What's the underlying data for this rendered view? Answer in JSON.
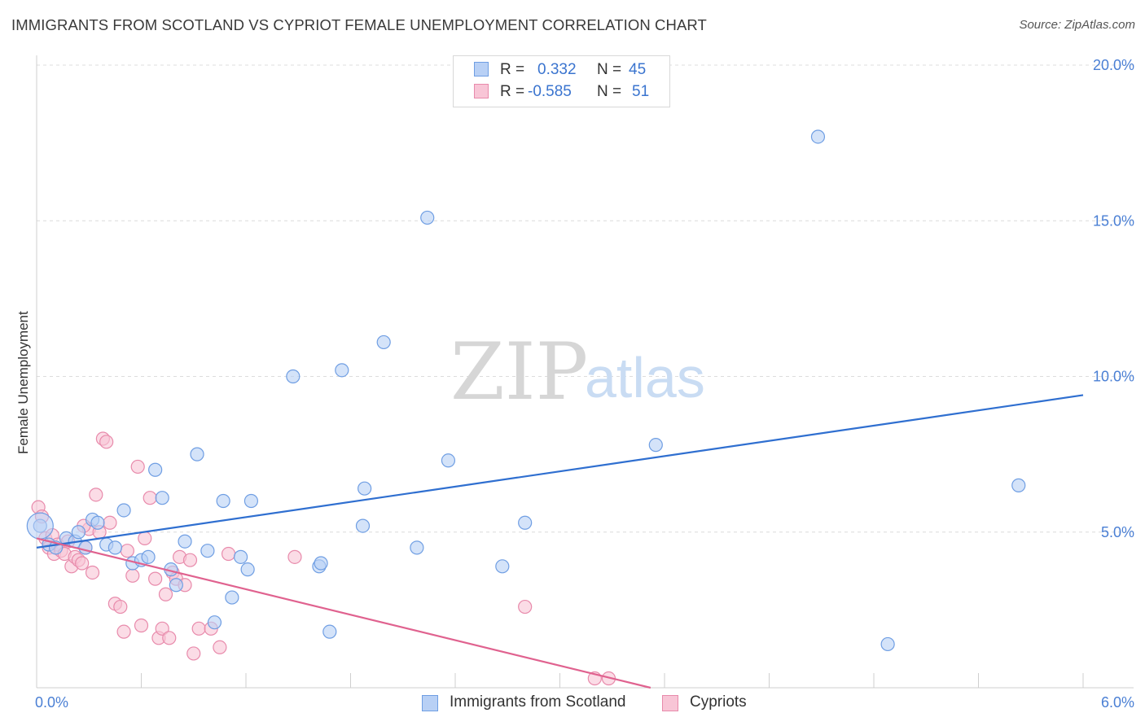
{
  "header": {
    "title": "IMMIGRANTS FROM SCOTLAND VS CYPRIOT FEMALE UNEMPLOYMENT CORRELATION CHART",
    "source": "Source: ZipAtlas.com"
  },
  "watermark": {
    "zip": "ZIP",
    "atlas": "atlas"
  },
  "legend": {
    "r_label": "R =",
    "n_label": "N =",
    "series": [
      {
        "r": "0.332",
        "n": "45"
      },
      {
        "r": "-0.585",
        "n": "51"
      }
    ]
  },
  "colors": {
    "blue_fill": "#b8d0f5",
    "blue_stroke": "#6f9ee3",
    "blue_line": "#2f6fd0",
    "pink_fill": "#f8c5d6",
    "pink_stroke": "#e88aab",
    "pink_line": "#e0628f",
    "tick_text": "#4a7fd4",
    "grid": "#dcdcdc"
  },
  "chart_data": {
    "type": "scatter",
    "title": "IMMIGRANTS FROM SCOTLAND VS CYPRIOT FEMALE UNEMPLOYMENT CORRELATION CHART",
    "xlabel": "",
    "ylabel": "Female Unemployment",
    "xlim": [
      0,
      6
    ],
    "ylim": [
      0,
      20
    ],
    "x_tick_labels": [
      "0.0%",
      "6.0%"
    ],
    "y_ticks": [
      5,
      10,
      15,
      20
    ],
    "y_tick_labels": [
      "5.0%",
      "10.0%",
      "15.0%",
      "20.0%"
    ],
    "grid": true,
    "series": [
      {
        "name": "Immigrants from Scotland",
        "color": "blue",
        "points": [
          [
            0.02,
            5.2
          ],
          [
            0.07,
            4.6
          ],
          [
            0.11,
            4.5
          ],
          [
            0.17,
            4.8
          ],
          [
            0.22,
            4.7
          ],
          [
            0.24,
            5.0
          ],
          [
            0.28,
            4.5
          ],
          [
            0.32,
            5.4
          ],
          [
            0.35,
            5.3
          ],
          [
            0.4,
            4.6
          ],
          [
            0.45,
            4.5
          ],
          [
            0.5,
            5.7
          ],
          [
            0.55,
            4.0
          ],
          [
            0.6,
            4.1
          ],
          [
            0.64,
            4.2
          ],
          [
            0.68,
            7.0
          ],
          [
            0.72,
            6.1
          ],
          [
            0.77,
            3.8
          ],
          [
            0.8,
            3.3
          ],
          [
            0.85,
            4.7
          ],
          [
            0.92,
            7.5
          ],
          [
            0.98,
            4.4
          ],
          [
            1.02,
            2.1
          ],
          [
            1.07,
            6.0
          ],
          [
            1.12,
            2.9
          ],
          [
            1.17,
            4.2
          ],
          [
            1.21,
            3.8
          ],
          [
            1.23,
            6.0
          ],
          [
            1.47,
            10.0
          ],
          [
            1.62,
            3.9
          ],
          [
            1.68,
            1.8
          ],
          [
            1.75,
            10.2
          ],
          [
            1.87,
            5.2
          ],
          [
            1.88,
            6.4
          ],
          [
            1.99,
            11.1
          ],
          [
            2.18,
            4.5
          ],
          [
            2.24,
            15.1
          ],
          [
            2.36,
            7.3
          ],
          [
            2.67,
            3.9
          ],
          [
            2.8,
            5.3
          ],
          [
            3.55,
            7.8
          ],
          [
            4.48,
            17.7
          ],
          [
            4.88,
            1.4
          ],
          [
            5.63,
            6.5
          ],
          [
            1.63,
            4.0
          ]
        ],
        "trend": [
          [
            0,
            4.5
          ],
          [
            6,
            9.4
          ]
        ]
      },
      {
        "name": "Cypriots",
        "color": "pink",
        "points": [
          [
            0.01,
            5.8
          ],
          [
            0.03,
            5.5
          ],
          [
            0.05,
            4.8
          ],
          [
            0.07,
            4.5
          ],
          [
            0.09,
            4.9
          ],
          [
            0.1,
            4.3
          ],
          [
            0.12,
            4.6
          ],
          [
            0.14,
            4.4
          ],
          [
            0.16,
            4.3
          ],
          [
            0.18,
            4.7
          ],
          [
            0.2,
            3.9
          ],
          [
            0.22,
            4.2
          ],
          [
            0.24,
            4.1
          ],
          [
            0.26,
            4.0
          ],
          [
            0.28,
            4.5
          ],
          [
            0.3,
            5.1
          ],
          [
            0.32,
            3.7
          ],
          [
            0.34,
            6.2
          ],
          [
            0.36,
            5.0
          ],
          [
            0.38,
            8.0
          ],
          [
            0.4,
            7.9
          ],
          [
            0.42,
            5.3
          ],
          [
            0.45,
            2.7
          ],
          [
            0.48,
            2.6
          ],
          [
            0.5,
            1.8
          ],
          [
            0.52,
            4.4
          ],
          [
            0.55,
            3.6
          ],
          [
            0.58,
            7.1
          ],
          [
            0.6,
            2.0
          ],
          [
            0.62,
            4.8
          ],
          [
            0.65,
            6.1
          ],
          [
            0.68,
            3.5
          ],
          [
            0.7,
            1.6
          ],
          [
            0.72,
            1.9
          ],
          [
            0.74,
            3.0
          ],
          [
            0.76,
            1.6
          ],
          [
            0.78,
            3.7
          ],
          [
            0.8,
            3.5
          ],
          [
            0.82,
            4.2
          ],
          [
            0.85,
            3.3
          ],
          [
            0.88,
            4.1
          ],
          [
            0.9,
            1.1
          ],
          [
            0.93,
            1.9
          ],
          [
            1.0,
            1.9
          ],
          [
            1.05,
            1.3
          ],
          [
            1.1,
            4.3
          ],
          [
            1.48,
            4.2
          ],
          [
            2.8,
            2.6
          ],
          [
            3.2,
            0.3
          ],
          [
            3.28,
            0.3
          ],
          [
            0.27,
            5.2
          ]
        ],
        "trend": [
          [
            0,
            4.8
          ],
          [
            3.52,
            0
          ]
        ]
      }
    ],
    "legend_position": "top-center"
  },
  "bottom_legend": [
    {
      "label": "Immigrants from Scotland"
    },
    {
      "label": "Cypriots"
    }
  ]
}
